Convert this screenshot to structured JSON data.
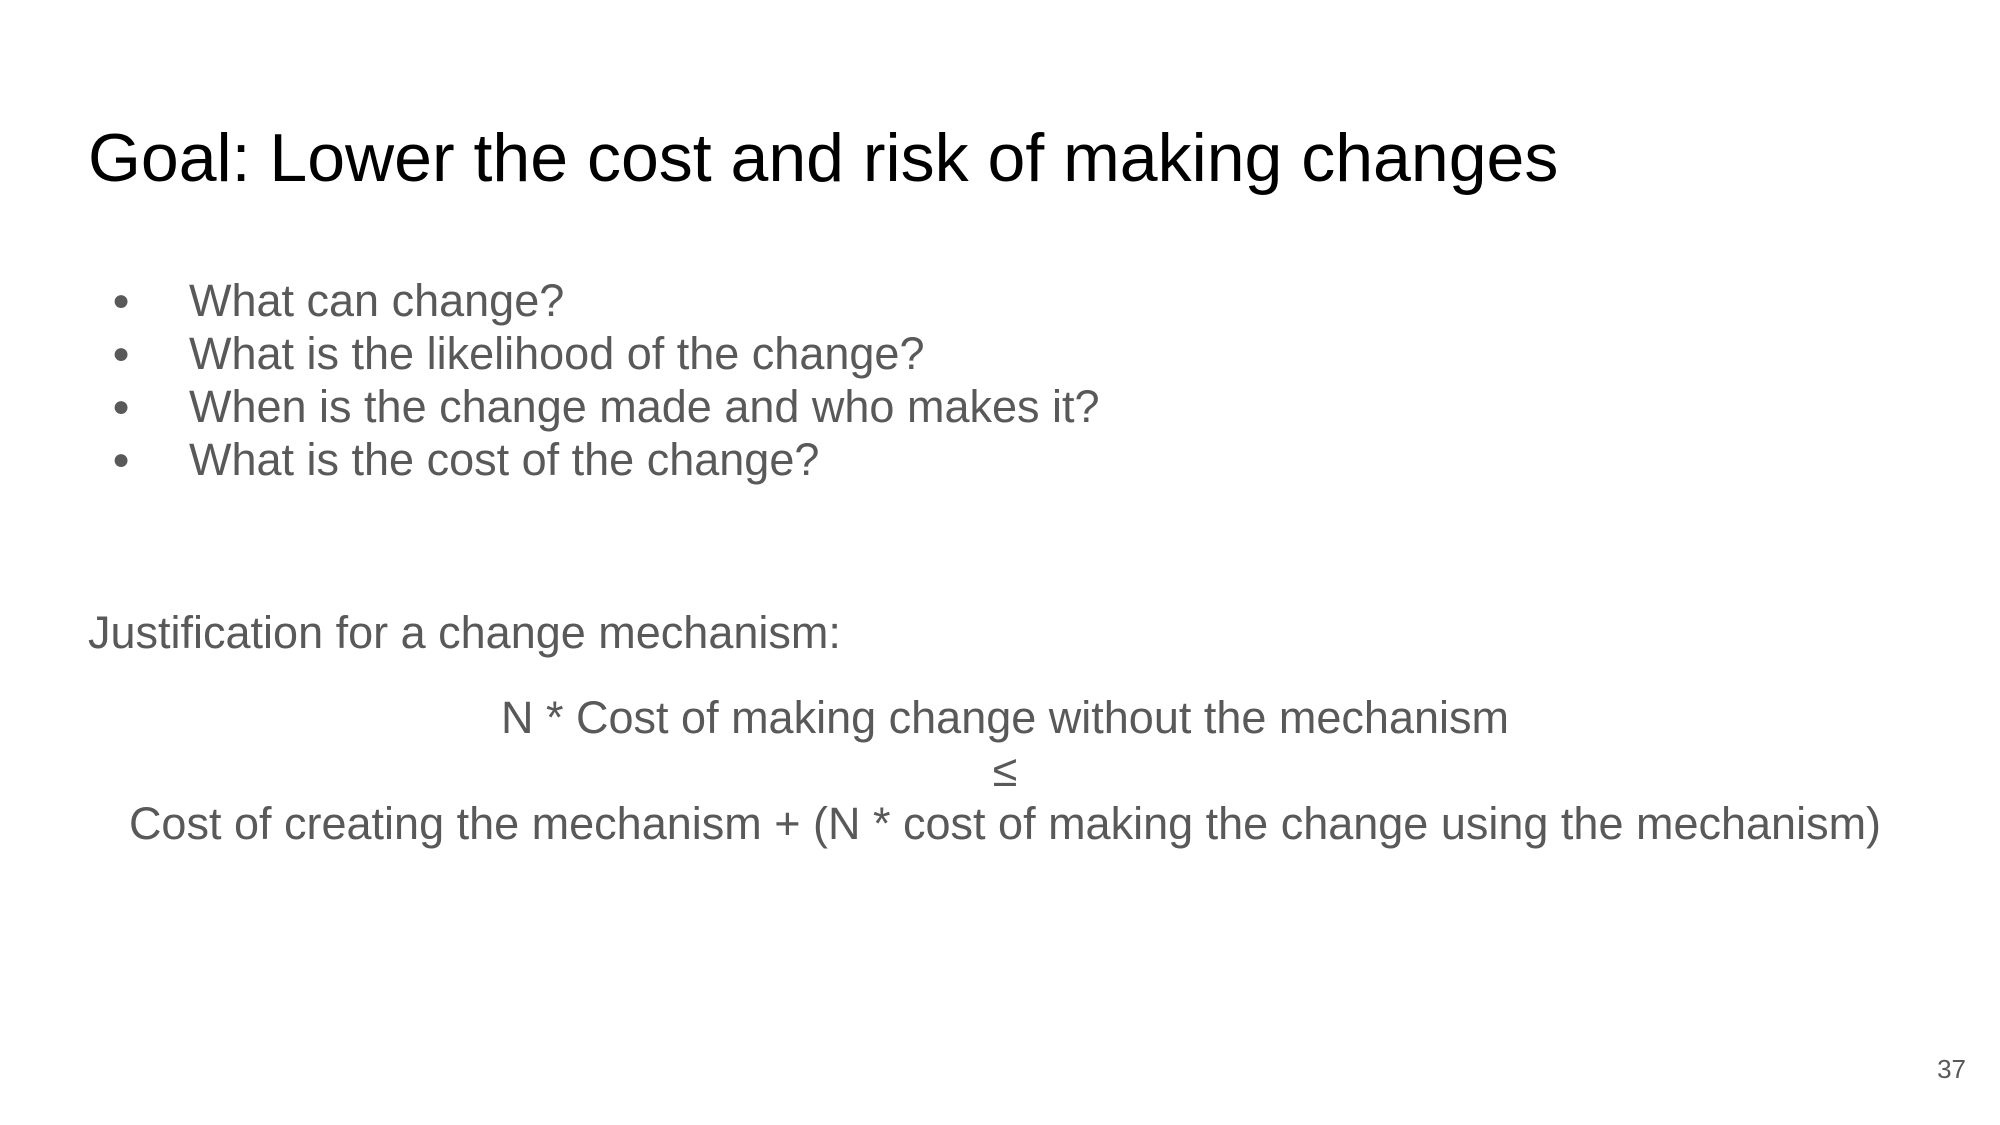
{
  "slide": {
    "title": "Goal: Lower the cost and risk of making changes",
    "bullet_marker": "●",
    "bullets": [
      "What can change?",
      "What is the likelihood of the change?",
      "When is the change made and who makes it?",
      "What is the cost of the change?"
    ],
    "justification_heading": "Justification for a change mechanism:",
    "formula": {
      "lhs": "N * Cost of making change without the mechanism",
      "operator": "≤",
      "rhs": "Cost of creating the mechanism + (N * cost of making the change using the mechanism)"
    },
    "page_number": "37"
  }
}
